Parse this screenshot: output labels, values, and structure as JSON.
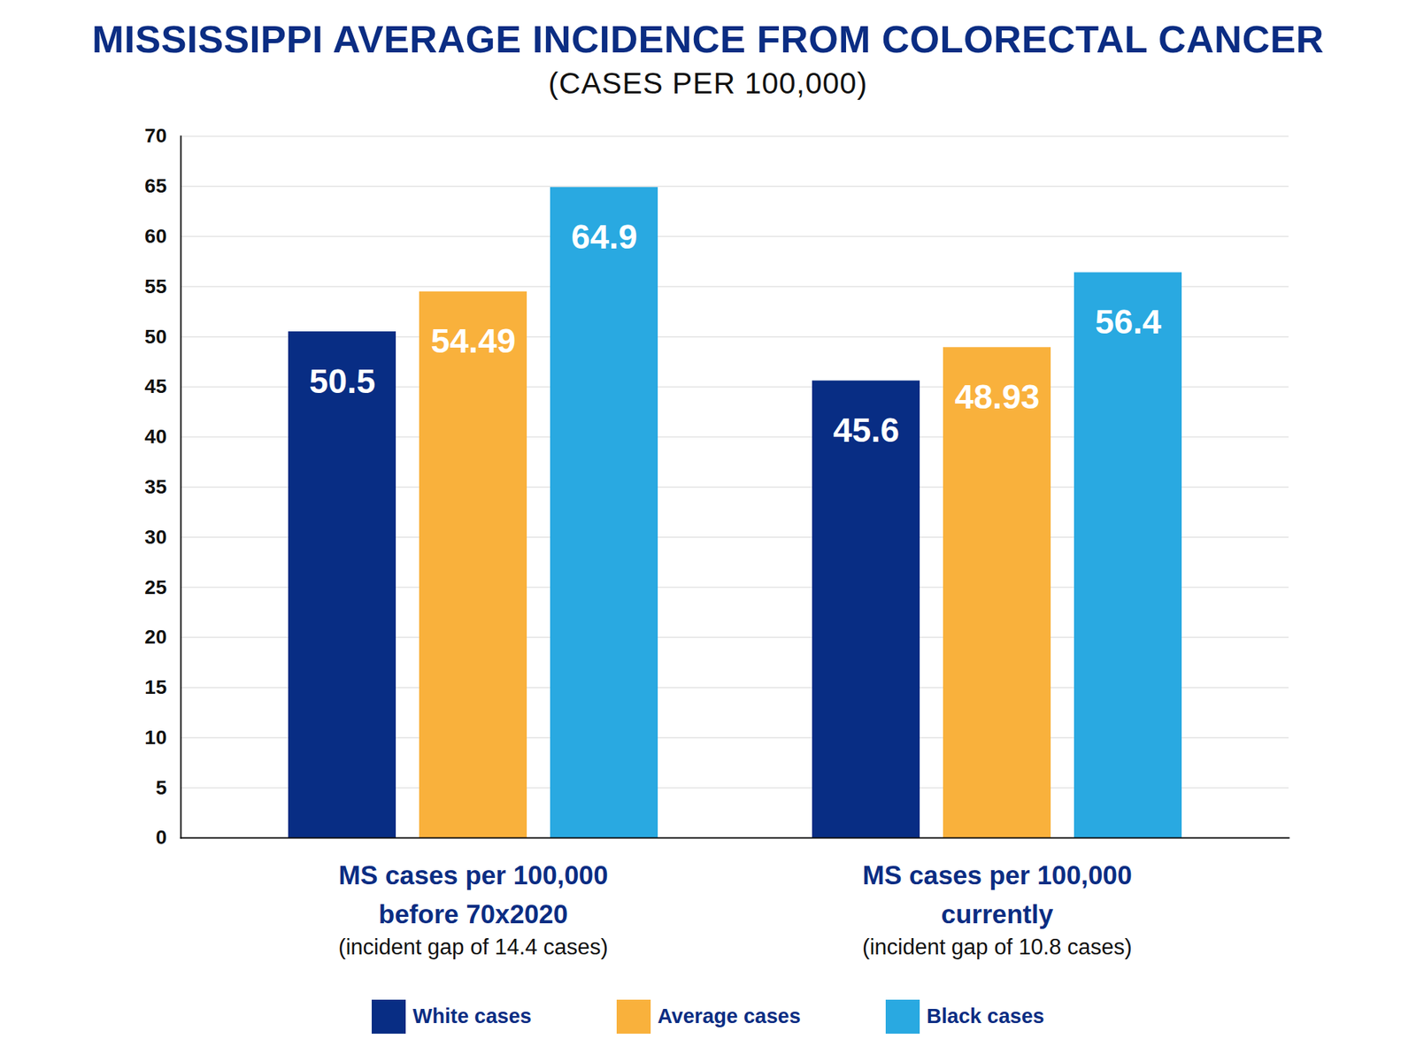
{
  "chart_data": {
    "type": "bar",
    "title": "MISSISSIPPI AVERAGE INCIDENCE FROM COLORECTAL CANCER",
    "subtitle": "(CASES PER 100,000)",
    "categories": [
      "MS cases per 100,000\nbefore 70x2020",
      "MS cases per 100,000\ncurrently"
    ],
    "annotations": [
      "(incident gap of 14.4 cases)",
      "(incident gap of 10.8 cases)"
    ],
    "series": [
      {
        "name": "White cases",
        "color": "#082d84",
        "values": [
          50.5,
          45.6
        ]
      },
      {
        "name": "Average cases",
        "color": "#f9b13c",
        "values": [
          54.49,
          48.93
        ]
      },
      {
        "name": "Black cases",
        "color": "#29a9e1",
        "values": [
          64.9,
          56.4
        ]
      }
    ],
    "ylim": [
      0,
      70
    ],
    "yticks": [
      0,
      5,
      10,
      15,
      20,
      25,
      30,
      35,
      40,
      45,
      50,
      55,
      60,
      65,
      70
    ],
    "grid": true,
    "data_labels": true,
    "legend": "bottom"
  }
}
